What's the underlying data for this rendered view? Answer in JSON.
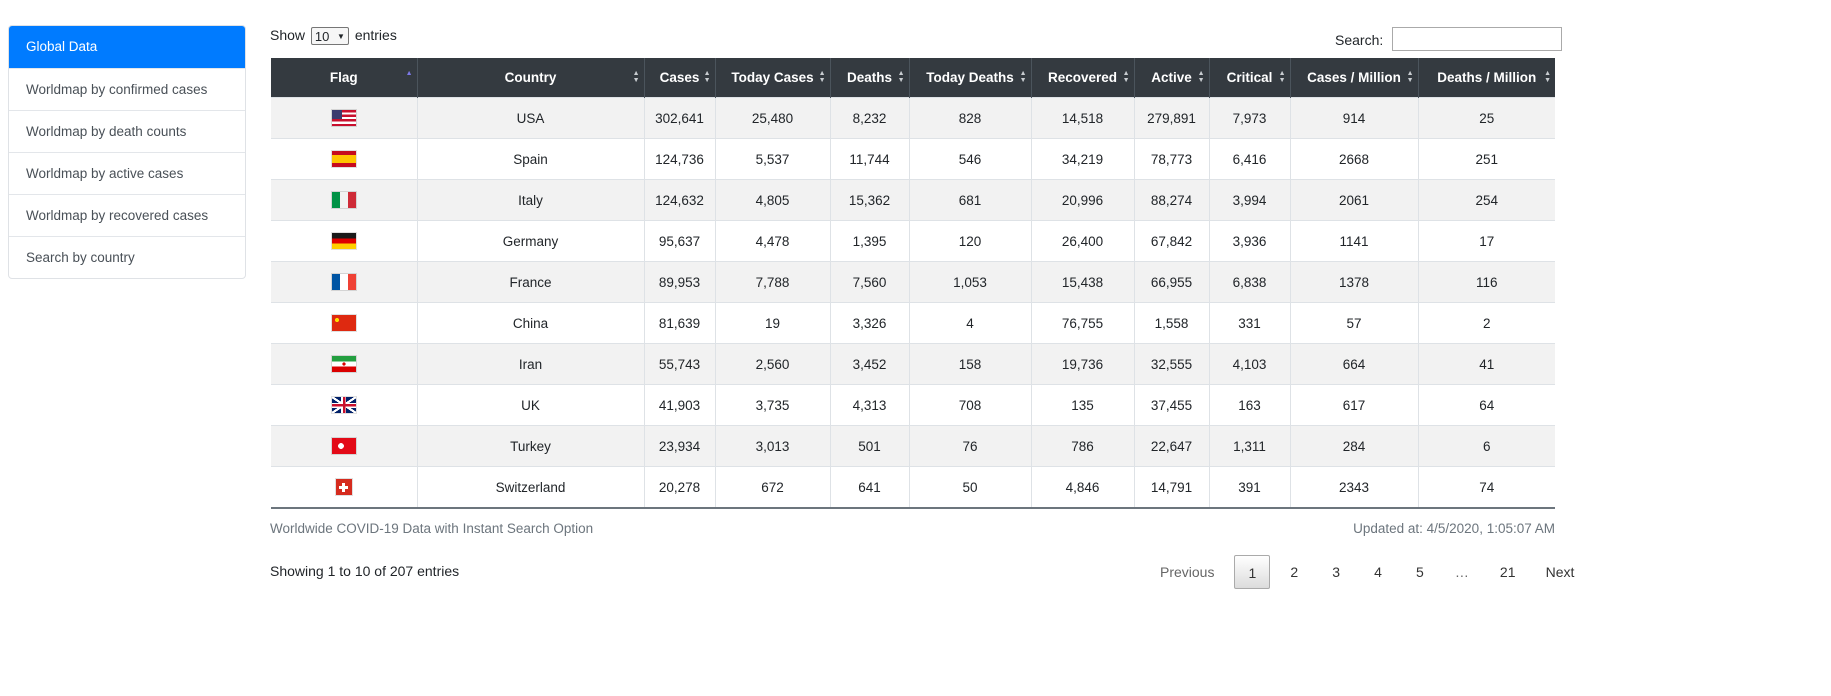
{
  "sidebar": {
    "items": [
      {
        "label": "Global Data"
      },
      {
        "label": "Worldmap by confirmed cases"
      },
      {
        "label": "Worldmap by death counts"
      },
      {
        "label": "Worldmap by active cases"
      },
      {
        "label": "Worldmap by recovered cases"
      },
      {
        "label": "Search by country"
      }
    ]
  },
  "controls": {
    "show_label": "Show",
    "entries_value": "10",
    "entries_label": "entries",
    "search_label": "Search:",
    "search_value": ""
  },
  "table": {
    "columns": [
      "Flag",
      "Country",
      "Cases",
      "Today Cases",
      "Deaths",
      "Today Deaths",
      "Recovered",
      "Active",
      "Critical",
      "Cases / Million",
      "Deaths / Million"
    ],
    "rows": [
      {
        "flag_icon": "usa-flag-icon",
        "country": "USA",
        "cases": "302,641",
        "today_cases": "25,480",
        "deaths": "8,232",
        "today_deaths": "828",
        "recovered": "14,518",
        "active": "279,891",
        "critical": "7,973",
        "cases_per_million": "914",
        "deaths_per_million": "25"
      },
      {
        "flag_icon": "spain-flag-icon",
        "country": "Spain",
        "cases": "124,736",
        "today_cases": "5,537",
        "deaths": "11,744",
        "today_deaths": "546",
        "recovered": "34,219",
        "active": "78,773",
        "critical": "6,416",
        "cases_per_million": "2668",
        "deaths_per_million": "251"
      },
      {
        "flag_icon": "italy-flag-icon",
        "country": "Italy",
        "cases": "124,632",
        "today_cases": "4,805",
        "deaths": "15,362",
        "today_deaths": "681",
        "recovered": "20,996",
        "active": "88,274",
        "critical": "3,994",
        "cases_per_million": "2061",
        "deaths_per_million": "254"
      },
      {
        "flag_icon": "germany-flag-icon",
        "country": "Germany",
        "cases": "95,637",
        "today_cases": "4,478",
        "deaths": "1,395",
        "today_deaths": "120",
        "recovered": "26,400",
        "active": "67,842",
        "critical": "3,936",
        "cases_per_million": "1141",
        "deaths_per_million": "17"
      },
      {
        "flag_icon": "france-flag-icon",
        "country": "France",
        "cases": "89,953",
        "today_cases": "7,788",
        "deaths": "7,560",
        "today_deaths": "1,053",
        "recovered": "15,438",
        "active": "66,955",
        "critical": "6,838",
        "cases_per_million": "1378",
        "deaths_per_million": "116"
      },
      {
        "flag_icon": "china-flag-icon",
        "country": "China",
        "cases": "81,639",
        "today_cases": "19",
        "deaths": "3,326",
        "today_deaths": "4",
        "recovered": "76,755",
        "active": "1,558",
        "critical": "331",
        "cases_per_million": "57",
        "deaths_per_million": "2"
      },
      {
        "flag_icon": "iran-flag-icon",
        "country": "Iran",
        "cases": "55,743",
        "today_cases": "2,560",
        "deaths": "3,452",
        "today_deaths": "158",
        "recovered": "19,736",
        "active": "32,555",
        "critical": "4,103",
        "cases_per_million": "664",
        "deaths_per_million": "41"
      },
      {
        "flag_icon": "uk-flag-icon",
        "country": "UK",
        "cases": "41,903",
        "today_cases": "3,735",
        "deaths": "4,313",
        "today_deaths": "708",
        "recovered": "135",
        "active": "37,455",
        "critical": "163",
        "cases_per_million": "617",
        "deaths_per_million": "64"
      },
      {
        "flag_icon": "turkey-flag-icon",
        "country": "Turkey",
        "cases": "23,934",
        "today_cases": "3,013",
        "deaths": "501",
        "today_deaths": "76",
        "recovered": "786",
        "active": "22,647",
        "critical": "1,311",
        "cases_per_million": "284",
        "deaths_per_million": "6"
      },
      {
        "flag_icon": "switzerland-flag-icon",
        "country": "Switzerland",
        "cases": "20,278",
        "today_cases": "672",
        "deaths": "641",
        "today_deaths": "50",
        "recovered": "4,846",
        "active": "14,791",
        "critical": "391",
        "cases_per_million": "2343",
        "deaths_per_million": "74"
      }
    ]
  },
  "footer": {
    "caption": "Worldwide COVID-19 Data with Instant Search Option",
    "updated": "Updated at: 4/5/2020, 1:05:07 AM",
    "info": "Showing 1 to 10 of 207 entries"
  },
  "pagination": {
    "previous": "Previous",
    "pages": [
      "1",
      "2",
      "3",
      "4",
      "5"
    ],
    "ellipsis": "…",
    "last": "21",
    "next": "Next"
  },
  "colors": {
    "accent": "#007bff",
    "table_header": "#343a40",
    "row_stripe": "#f2f2f2"
  }
}
